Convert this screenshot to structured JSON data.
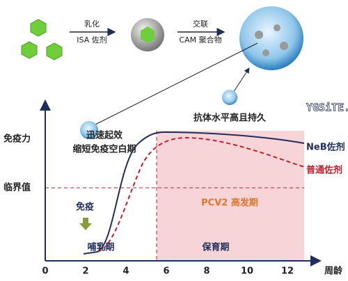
{
  "top": {
    "step1_top": "乳化",
    "step1_bottom": "ISA 佐剂",
    "step2_top": "交联",
    "step2_bottom": "CAM 聚合物"
  },
  "watermark": "YGSiTE.CN",
  "note_fast": [
    "迅速起效",
    "缩短免疫空白期"
  ],
  "note_lasting": "抗体水平高且持久",
  "y_axis_label": "免疫力",
  "threshold_label": "临界值",
  "x_axis_label": "周龄",
  "xticks": [
    0,
    2,
    4,
    6,
    8,
    10,
    12
  ],
  "legend": {
    "neb": "NeB佐剂",
    "normal": "普通佐剂"
  },
  "period_high": "PCV2 高发期",
  "immunize": "免疫",
  "phase_1": "哺乳期",
  "phase_2": "保育期"
}
